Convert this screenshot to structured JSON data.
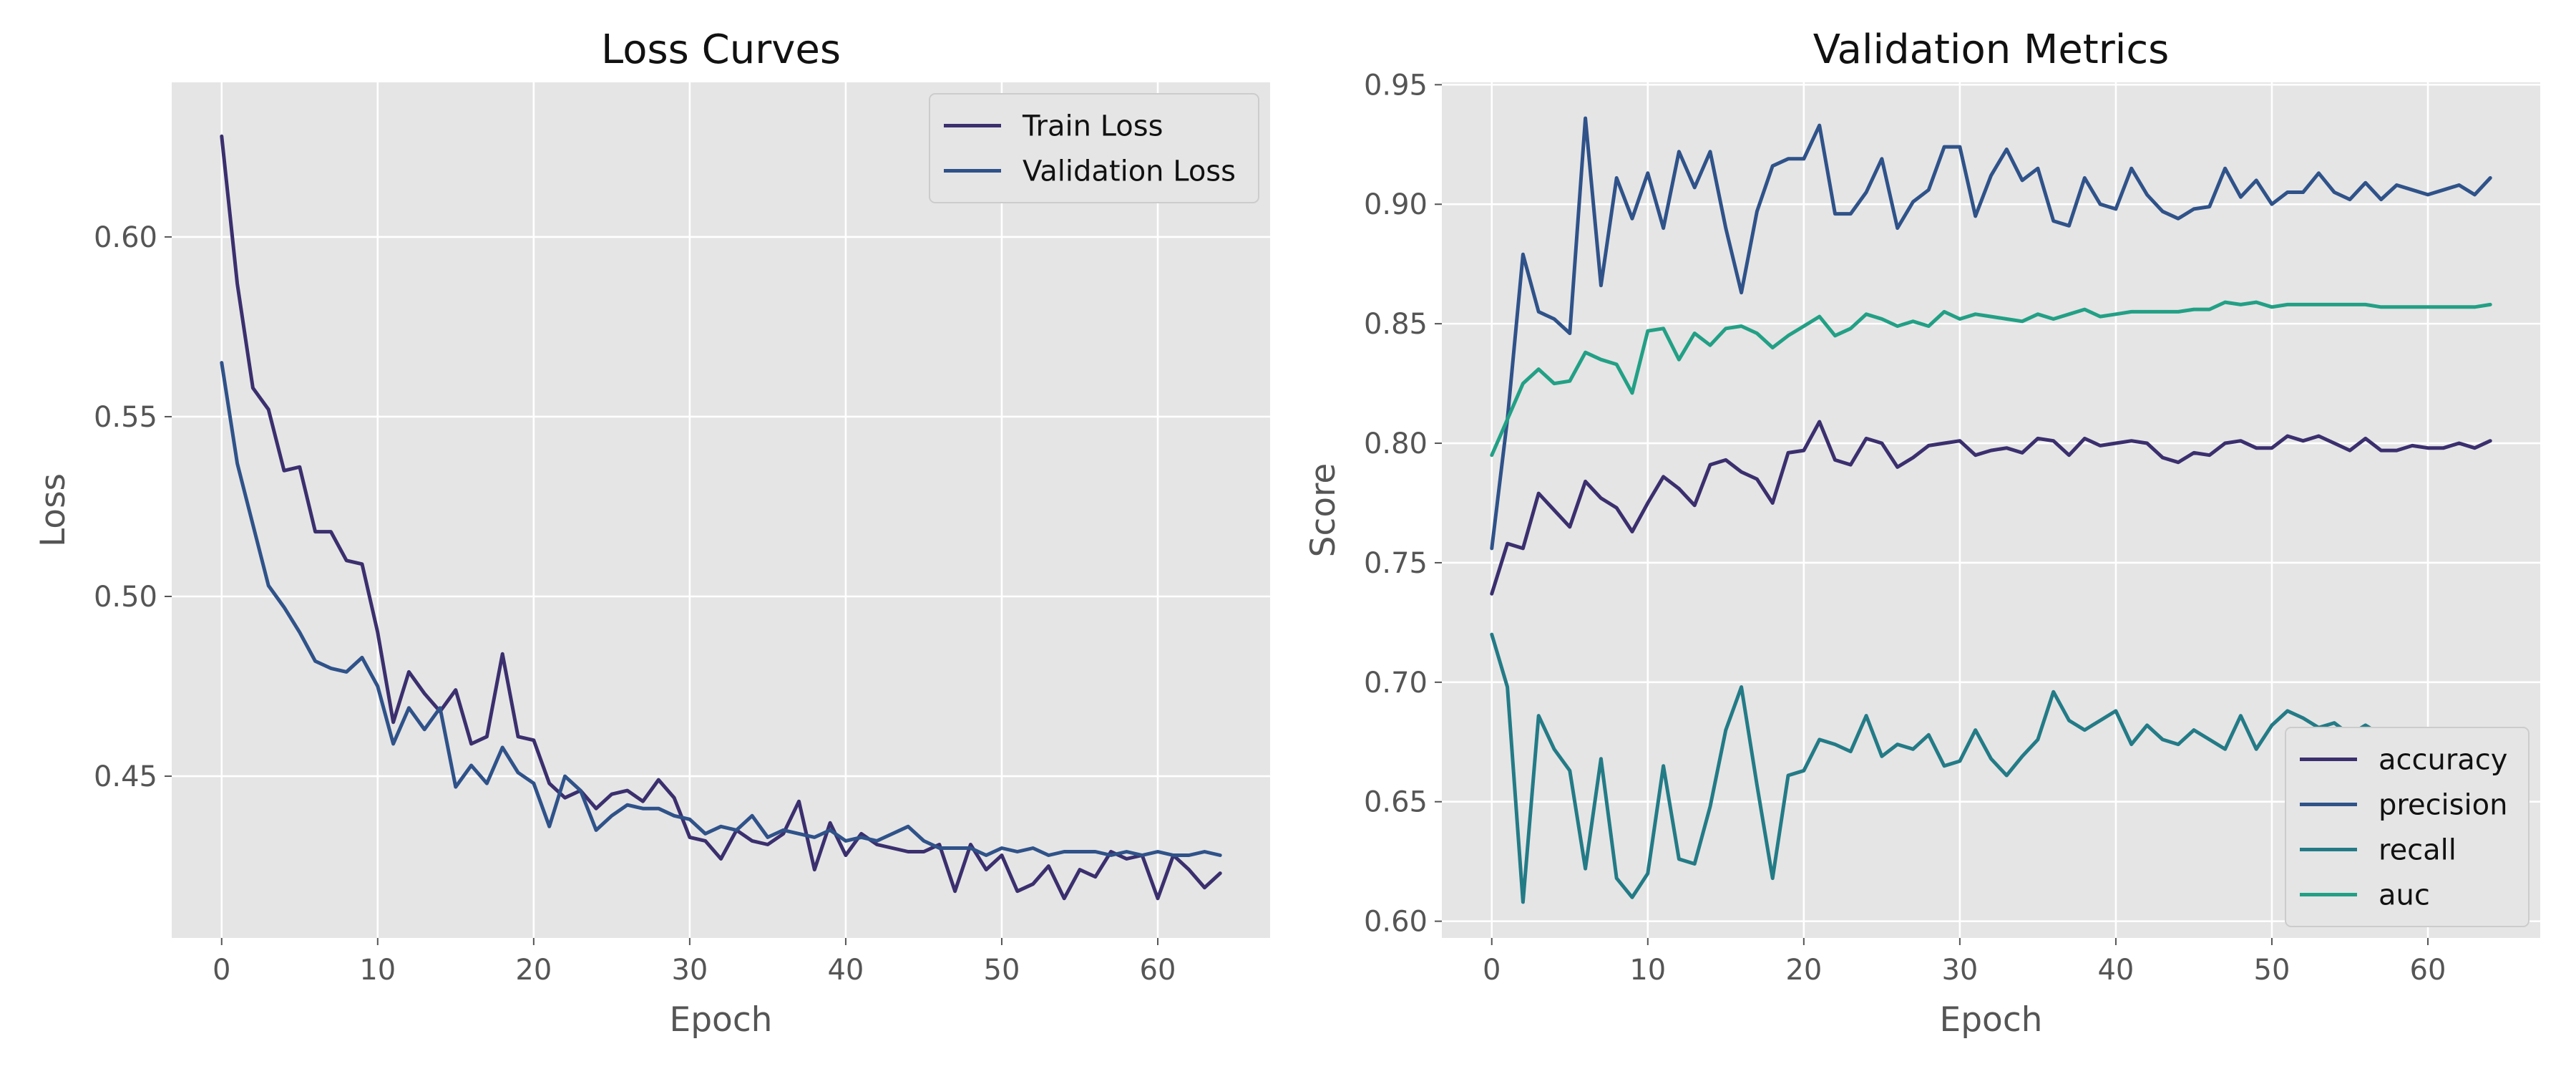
{
  "chart_data": [
    {
      "type": "line",
      "title": "Loss Curves",
      "xlabel": "Epoch",
      "ylabel": "Loss",
      "xlim": [
        -3.2,
        67.2
      ],
      "ylim": [
        0.405,
        0.643
      ],
      "xticks": [
        0,
        10,
        20,
        30,
        40,
        50,
        60
      ],
      "yticks": [
        0.45,
        0.5,
        0.55,
        0.6
      ],
      "ytick_labels": [
        "0.45",
        "0.50",
        "0.55",
        "0.60"
      ],
      "grid": true,
      "legend": "top-right",
      "x": [
        0,
        1,
        2,
        3,
        4,
        5,
        6,
        7,
        8,
        9,
        10,
        11,
        12,
        13,
        14,
        15,
        16,
        17,
        18,
        19,
        20,
        21,
        22,
        23,
        24,
        25,
        26,
        27,
        28,
        29,
        30,
        31,
        32,
        33,
        34,
        35,
        36,
        37,
        38,
        39,
        40,
        41,
        42,
        43,
        44,
        45,
        46,
        47,
        48,
        49,
        50,
        51,
        52,
        53,
        54,
        55,
        56,
        57,
        58,
        59,
        60,
        61,
        62,
        63,
        64
      ],
      "series": [
        {
          "name": "Train Loss",
          "color": "#3b2f6e",
          "values": [
            0.628,
            0.587,
            0.558,
            0.552,
            0.535,
            0.536,
            0.518,
            0.518,
            0.51,
            0.509,
            0.49,
            0.465,
            0.479,
            0.473,
            0.468,
            0.474,
            0.459,
            0.461,
            0.484,
            0.461,
            0.46,
            0.448,
            0.444,
            0.446,
            0.441,
            0.445,
            0.446,
            0.443,
            0.449,
            0.444,
            0.433,
            0.432,
            0.427,
            0.435,
            0.432,
            0.431,
            0.434,
            0.443,
            0.424,
            0.437,
            0.428,
            0.434,
            0.431,
            0.43,
            0.429,
            0.429,
            0.431,
            0.418,
            0.431,
            0.424,
            0.428,
            0.418,
            0.42,
            0.425,
            0.416,
            0.424,
            0.422,
            0.429,
            0.427,
            0.428,
            0.416,
            0.428,
            0.424,
            0.419,
            0.423
          ]
        },
        {
          "name": "Validation Loss",
          "color": "#2f5289",
          "values": [
            0.565,
            0.537,
            0.52,
            0.503,
            0.497,
            0.49,
            0.482,
            0.48,
            0.479,
            0.483,
            0.475,
            0.459,
            0.469,
            0.463,
            0.469,
            0.447,
            0.453,
            0.448,
            0.458,
            0.451,
            0.448,
            0.436,
            0.45,
            0.446,
            0.435,
            0.439,
            0.442,
            0.441,
            0.441,
            0.439,
            0.438,
            0.434,
            0.436,
            0.435,
            0.439,
            0.433,
            0.435,
            0.434,
            0.433,
            0.435,
            0.432,
            0.433,
            0.432,
            0.434,
            0.436,
            0.432,
            0.43,
            0.43,
            0.43,
            0.428,
            0.43,
            0.429,
            0.43,
            0.428,
            0.429,
            0.429,
            0.429,
            0.428,
            0.429,
            0.428,
            0.429,
            0.428,
            0.428,
            0.429,
            0.428
          ]
        }
      ]
    },
    {
      "type": "line",
      "title": "Validation Metrics",
      "xlabel": "Epoch",
      "ylabel": "Score",
      "xlim": [
        -3.2,
        67.2
      ],
      "ylim": [
        0.593,
        0.951
      ],
      "xticks": [
        0,
        10,
        20,
        30,
        40,
        50,
        60
      ],
      "yticks": [
        0.6,
        0.65,
        0.7,
        0.75,
        0.8,
        0.85,
        0.9,
        0.95
      ],
      "ytick_labels": [
        "0.60",
        "0.65",
        "0.70",
        "0.75",
        "0.80",
        "0.85",
        "0.90",
        "0.95"
      ],
      "grid": true,
      "legend": "bottom-right",
      "x": [
        0,
        1,
        2,
        3,
        4,
        5,
        6,
        7,
        8,
        9,
        10,
        11,
        12,
        13,
        14,
        15,
        16,
        17,
        18,
        19,
        20,
        21,
        22,
        23,
        24,
        25,
        26,
        27,
        28,
        29,
        30,
        31,
        32,
        33,
        34,
        35,
        36,
        37,
        38,
        39,
        40,
        41,
        42,
        43,
        44,
        45,
        46,
        47,
        48,
        49,
        50,
        51,
        52,
        53,
        54,
        55,
        56,
        57,
        58,
        59,
        60,
        61,
        62,
        63,
        64
      ],
      "series": [
        {
          "name": "accuracy",
          "color": "#3b2f6e",
          "values": [
            0.737,
            0.758,
            0.756,
            0.779,
            0.772,
            0.765,
            0.784,
            0.777,
            0.773,
            0.763,
            0.775,
            0.786,
            0.781,
            0.774,
            0.791,
            0.793,
            0.788,
            0.785,
            0.775,
            0.796,
            0.797,
            0.809,
            0.793,
            0.791,
            0.802,
            0.8,
            0.79,
            0.794,
            0.799,
            0.8,
            0.801,
            0.795,
            0.797,
            0.798,
            0.796,
            0.802,
            0.801,
            0.795,
            0.802,
            0.799,
            0.8,
            0.801,
            0.8,
            0.794,
            0.792,
            0.796,
            0.795,
            0.8,
            0.801,
            0.798,
            0.798,
            0.803,
            0.801,
            0.803,
            0.8,
            0.797,
            0.802,
            0.797,
            0.797,
            0.799,
            0.798,
            0.798,
            0.8,
            0.798,
            0.801
          ]
        },
        {
          "name": "precision",
          "color": "#2f5289",
          "values": [
            0.756,
            0.81,
            0.879,
            0.855,
            0.852,
            0.846,
            0.936,
            0.866,
            0.911,
            0.894,
            0.913,
            0.89,
            0.922,
            0.907,
            0.922,
            0.89,
            0.863,
            0.897,
            0.916,
            0.919,
            0.919,
            0.933,
            0.896,
            0.896,
            0.905,
            0.919,
            0.89,
            0.901,
            0.906,
            0.924,
            0.924,
            0.895,
            0.912,
            0.923,
            0.91,
            0.915,
            0.893,
            0.891,
            0.911,
            0.9,
            0.898,
            0.915,
            0.904,
            0.897,
            0.894,
            0.898,
            0.899,
            0.915,
            0.903,
            0.91,
            0.9,
            0.905,
            0.905,
            0.913,
            0.905,
            0.902,
            0.909,
            0.902,
            0.908,
            0.906,
            0.904,
            0.906,
            0.908,
            0.904,
            0.911
          ]
        },
        {
          "name": "recall",
          "color": "#237b86",
          "values": [
            0.72,
            0.698,
            0.608,
            0.686,
            0.672,
            0.663,
            0.622,
            0.668,
            0.618,
            0.61,
            0.62,
            0.665,
            0.626,
            0.624,
            0.648,
            0.68,
            0.698,
            0.657,
            0.618,
            0.661,
            0.663,
            0.676,
            0.674,
            0.671,
            0.686,
            0.669,
            0.674,
            0.672,
            0.678,
            0.665,
            0.667,
            0.68,
            0.668,
            0.661,
            0.669,
            0.676,
            0.696,
            0.684,
            0.68,
            0.684,
            0.688,
            0.674,
            0.682,
            0.676,
            0.674,
            0.68,
            0.676,
            0.672,
            0.686,
            0.672,
            0.682,
            0.688,
            0.685,
            0.681,
            0.683,
            0.678,
            0.682,
            0.678,
            0.672,
            0.678,
            0.678,
            0.676,
            0.678,
            0.678,
            0.678
          ]
        },
        {
          "name": "auc",
          "color": "#22a085",
          "values": [
            0.795,
            0.81,
            0.825,
            0.831,
            0.825,
            0.826,
            0.838,
            0.835,
            0.833,
            0.821,
            0.847,
            0.848,
            0.835,
            0.846,
            0.841,
            0.848,
            0.849,
            0.846,
            0.84,
            0.845,
            0.849,
            0.853,
            0.845,
            0.848,
            0.854,
            0.852,
            0.849,
            0.851,
            0.849,
            0.855,
            0.852,
            0.854,
            0.853,
            0.852,
            0.851,
            0.854,
            0.852,
            0.854,
            0.856,
            0.853,
            0.854,
            0.855,
            0.855,
            0.855,
            0.855,
            0.856,
            0.856,
            0.859,
            0.858,
            0.859,
            0.857,
            0.858,
            0.858,
            0.858,
            0.858,
            0.858,
            0.858,
            0.857,
            0.857,
            0.857,
            0.857,
            0.857,
            0.857,
            0.857,
            0.858
          ]
        }
      ]
    }
  ]
}
